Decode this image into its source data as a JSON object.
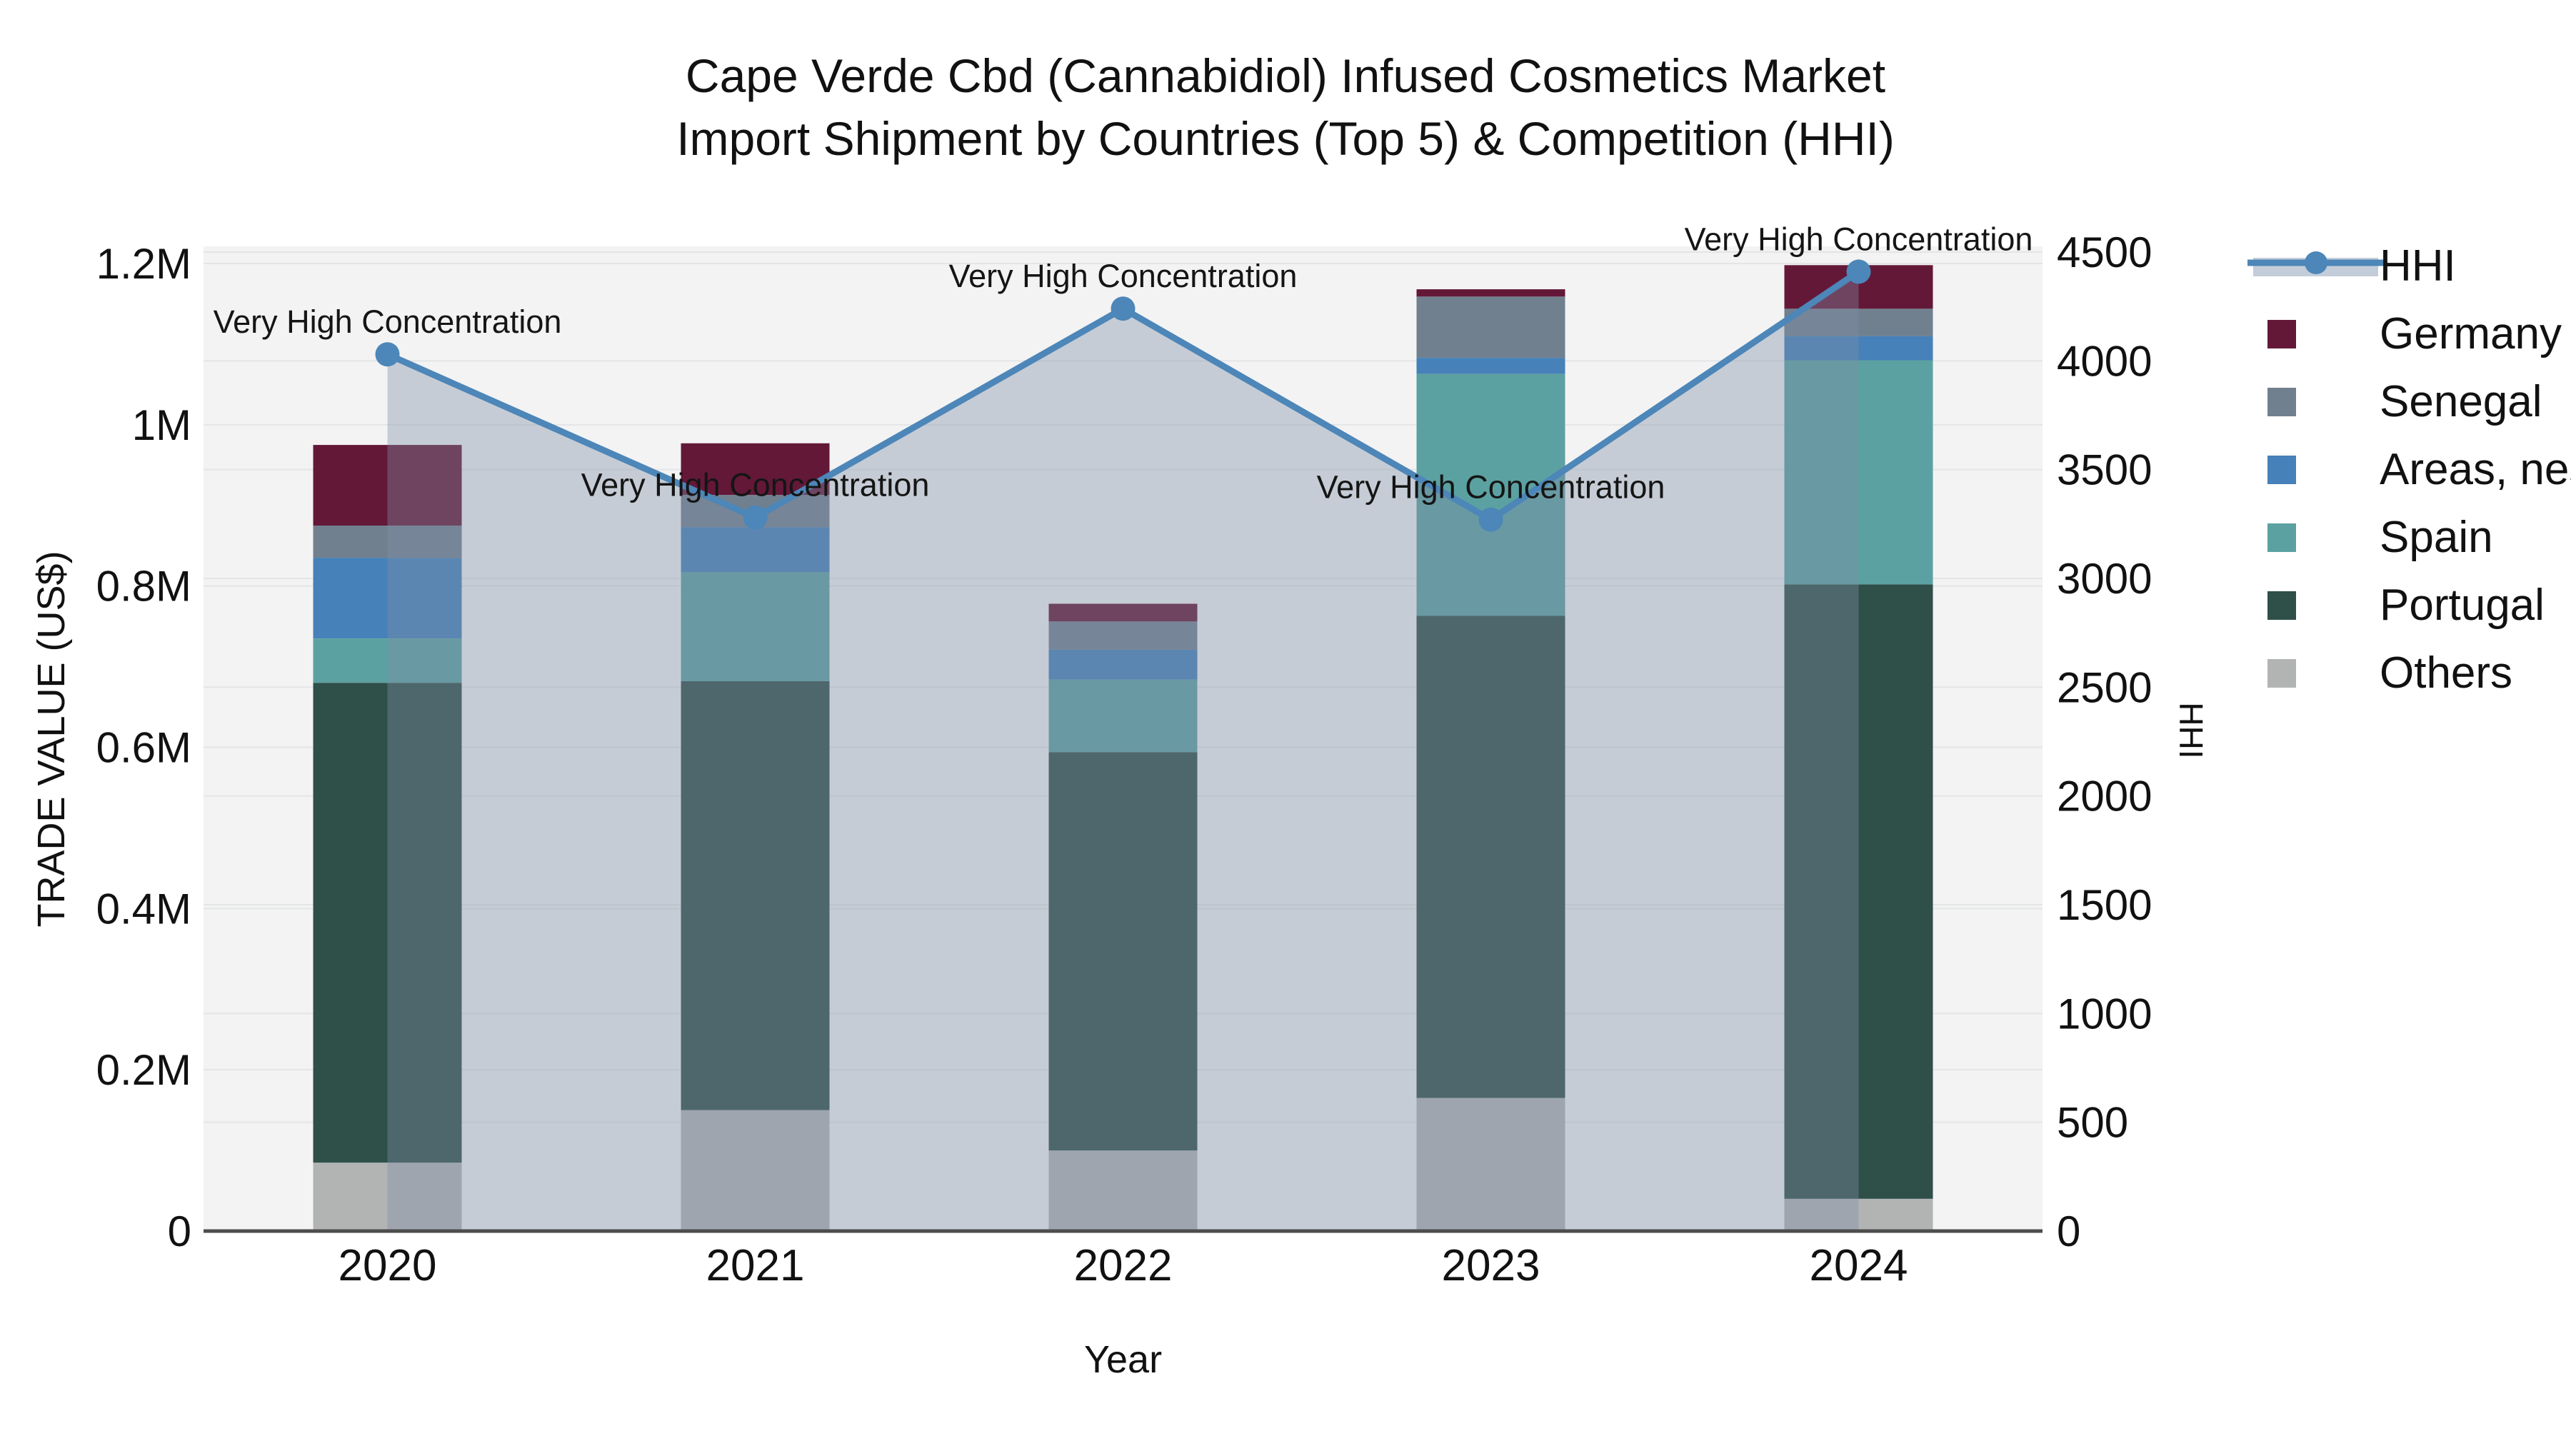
{
  "title": {
    "line1": "Cape Verde Cbd (Cannabidiol) Infused Cosmetics Market",
    "line2": "Import Shipment by Countries (Top 5) & Competition (HHI)"
  },
  "axes": {
    "x": {
      "label": "Year",
      "categories": [
        "2020",
        "2021",
        "2022",
        "2023",
        "2024"
      ]
    },
    "y_left": {
      "label": "TRADE VALUE (US$)",
      "max": 1200000,
      "ticks": [
        {
          "value": 0,
          "label": "0"
        },
        {
          "value": 200000,
          "label": "0.2M"
        },
        {
          "value": 400000,
          "label": "0.4M"
        },
        {
          "value": 600000,
          "label": "0.6M"
        },
        {
          "value": 800000,
          "label": "0.8M"
        },
        {
          "value": 1000000,
          "label": "1M"
        },
        {
          "value": 1200000,
          "label": "1.2M"
        }
      ]
    },
    "y_right": {
      "label": "HHI",
      "max": 4500,
      "ticks": [
        {
          "value": 0,
          "label": "0"
        },
        {
          "value": 500,
          "label": "500"
        },
        {
          "value": 1000,
          "label": "1000"
        },
        {
          "value": 1500,
          "label": "1500"
        },
        {
          "value": 2000,
          "label": "2000"
        },
        {
          "value": 2500,
          "label": "2500"
        },
        {
          "value": 3000,
          "label": "3000"
        },
        {
          "value": 3500,
          "label": "3500"
        },
        {
          "value": 4000,
          "label": "4000"
        },
        {
          "value": 4500,
          "label": "4500"
        }
      ]
    }
  },
  "colors": {
    "hhi_line": "#4d86b8",
    "hhi_marker": "#4d86b8",
    "hhi_area": "rgba(125,142,166,0.38)",
    "hhi_legend_band": "#c3cdd9",
    "germany": "#641838",
    "senegal": "#71808f",
    "areas_nes": "#4681b9",
    "spain": "#5ca1a1",
    "portugal": "#2f4f49",
    "others": "#b2b4b4",
    "plot_bg": "#f3f3f3",
    "grid": "#e3e5e7",
    "axis_line": "#4d4d4d",
    "text": "#111111"
  },
  "legend": {
    "items": [
      {
        "label": "HHI",
        "color_key": "hhi_line",
        "kind": "line"
      },
      {
        "label": "Germany",
        "color_key": "germany",
        "kind": "swatch"
      },
      {
        "label": "Senegal",
        "color_key": "senegal",
        "kind": "swatch"
      },
      {
        "label": "Areas, nes",
        "color_key": "areas_nes",
        "kind": "swatch"
      },
      {
        "label": "Spain",
        "color_key": "spain",
        "kind": "swatch"
      },
      {
        "label": "Portugal",
        "color_key": "portugal",
        "kind": "swatch"
      },
      {
        "label": "Others",
        "color_key": "others",
        "kind": "swatch"
      }
    ]
  },
  "chart_data": {
    "type": "combo: stacked bar (left axis) + line with area fill (right axis)",
    "categories": [
      "2020",
      "2021",
      "2022",
      "2023",
      "2024"
    ],
    "bar_stack_order_bottom_to_top": [
      "Others",
      "Portugal",
      "Spain",
      "Areas, nes",
      "Senegal",
      "Germany"
    ],
    "series": [
      {
        "name": "Others",
        "color_key": "others",
        "values": [
          85000,
          150000,
          100000,
          165000,
          40000
        ]
      },
      {
        "name": "Portugal",
        "color_key": "portugal",
        "values": [
          595000,
          532000,
          494000,
          598000,
          762000
        ]
      },
      {
        "name": "Spain",
        "color_key": "spain",
        "values": [
          55000,
          135000,
          90000,
          300000,
          278000
        ]
      },
      {
        "name": "Areas, nes",
        "color_key": "areas_nes",
        "values": [
          100000,
          56000,
          37000,
          20000,
          30000
        ]
      },
      {
        "name": "Senegal",
        "color_key": "senegal",
        "values": [
          40000,
          40000,
          35000,
          76000,
          34000
        ]
      },
      {
        "name": "Germany",
        "color_key": "germany",
        "values": [
          100000,
          64000,
          22000,
          9000,
          54000
        ]
      }
    ],
    "bar_totals": [
      975000,
      977000,
      778000,
      1168000,
      1198000
    ],
    "line_series": {
      "name": "HHI",
      "axis": "right",
      "values": [
        4030,
        3280,
        4240,
        3270,
        4410
      ],
      "point_annotation": "Very High Concentration"
    },
    "title": "Cape Verde Cbd (Cannabidiol) Infused Cosmetics Market Import Shipment by Countries (Top 5) & Competition (HHI)",
    "xlabel": "Year",
    "ylabel_left": "TRADE VALUE (US$)",
    "ylabel_right": "HHI",
    "ylim_left": [
      0,
      1200000
    ],
    "ylim_right": [
      0,
      4500
    ],
    "grid": true,
    "legend_position": "right"
  }
}
